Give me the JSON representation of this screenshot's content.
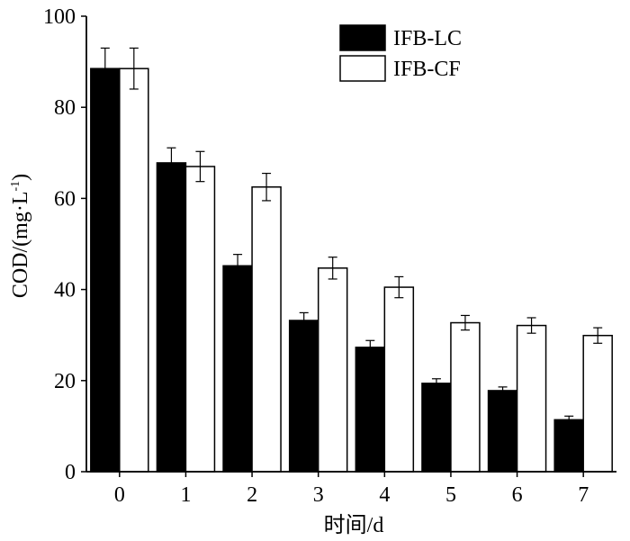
{
  "chart_data": {
    "type": "bar",
    "title": "",
    "xlabel": "时间/d",
    "ylabel": "COD/(mg·L",
    "ylabel_sup": "-1",
    "ylabel_close": ")",
    "categories": [
      "0",
      "1",
      "2",
      "3",
      "4",
      "5",
      "6",
      "7"
    ],
    "ylim": [
      0,
      100
    ],
    "yticks": [
      "0",
      "20",
      "40",
      "60",
      "80",
      "100"
    ],
    "legend_position": "top-right",
    "grid": false,
    "series": [
      {
        "name": "IFB-LC",
        "fill": "#000000",
        "values": [
          88.5,
          67.8,
          45.2,
          33.2,
          27.3,
          19.4,
          17.8,
          11.4
        ],
        "errors": [
          4.5,
          3.3,
          2.5,
          1.7,
          1.5,
          1.0,
          0.8,
          0.8
        ]
      },
      {
        "name": "IFB-CF",
        "fill": "#ffffff",
        "values": [
          88.5,
          67.0,
          62.5,
          44.7,
          40.5,
          32.7,
          32.1,
          29.9
        ],
        "errors": [
          4.5,
          3.3,
          3.0,
          2.4,
          2.3,
          1.6,
          1.7,
          1.7
        ]
      }
    ]
  }
}
